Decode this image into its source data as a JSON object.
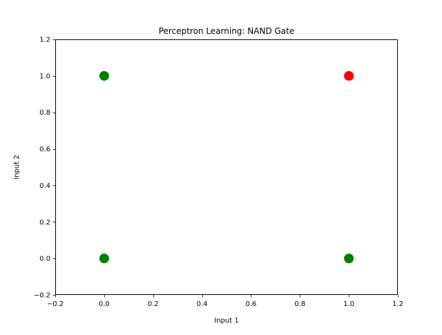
{
  "chart_data": {
    "type": "scatter",
    "title": "Perceptron Learning: NAND Gate",
    "xlabel": "Input 1",
    "ylabel": "Input 2",
    "xlim": [
      -0.2,
      1.2
    ],
    "ylim": [
      -0.2,
      1.2
    ],
    "xticks": [
      "−0.2",
      "0.0",
      "0.2",
      "0.4",
      "0.6",
      "0.8",
      "1.0",
      "1.2"
    ],
    "yticks": [
      "−0.2",
      "0.0",
      "0.2",
      "0.4",
      "0.6",
      "0.8",
      "1.0",
      "1.2"
    ],
    "xtick_values": [
      -0.2,
      0.0,
      0.2,
      0.4,
      0.6,
      0.8,
      1.0,
      1.2
    ],
    "ytick_values": [
      -0.2,
      0.0,
      0.2,
      0.4,
      0.6,
      0.8,
      1.0,
      1.2
    ],
    "grid": false,
    "legend": null,
    "points": [
      {
        "x": 0,
        "y": 0,
        "color": "#008000"
      },
      {
        "x": 0,
        "y": 1,
        "color": "#008000"
      },
      {
        "x": 1,
        "y": 0,
        "color": "#008000"
      },
      {
        "x": 1,
        "y": 1,
        "color": "#ff0000"
      }
    ]
  }
}
